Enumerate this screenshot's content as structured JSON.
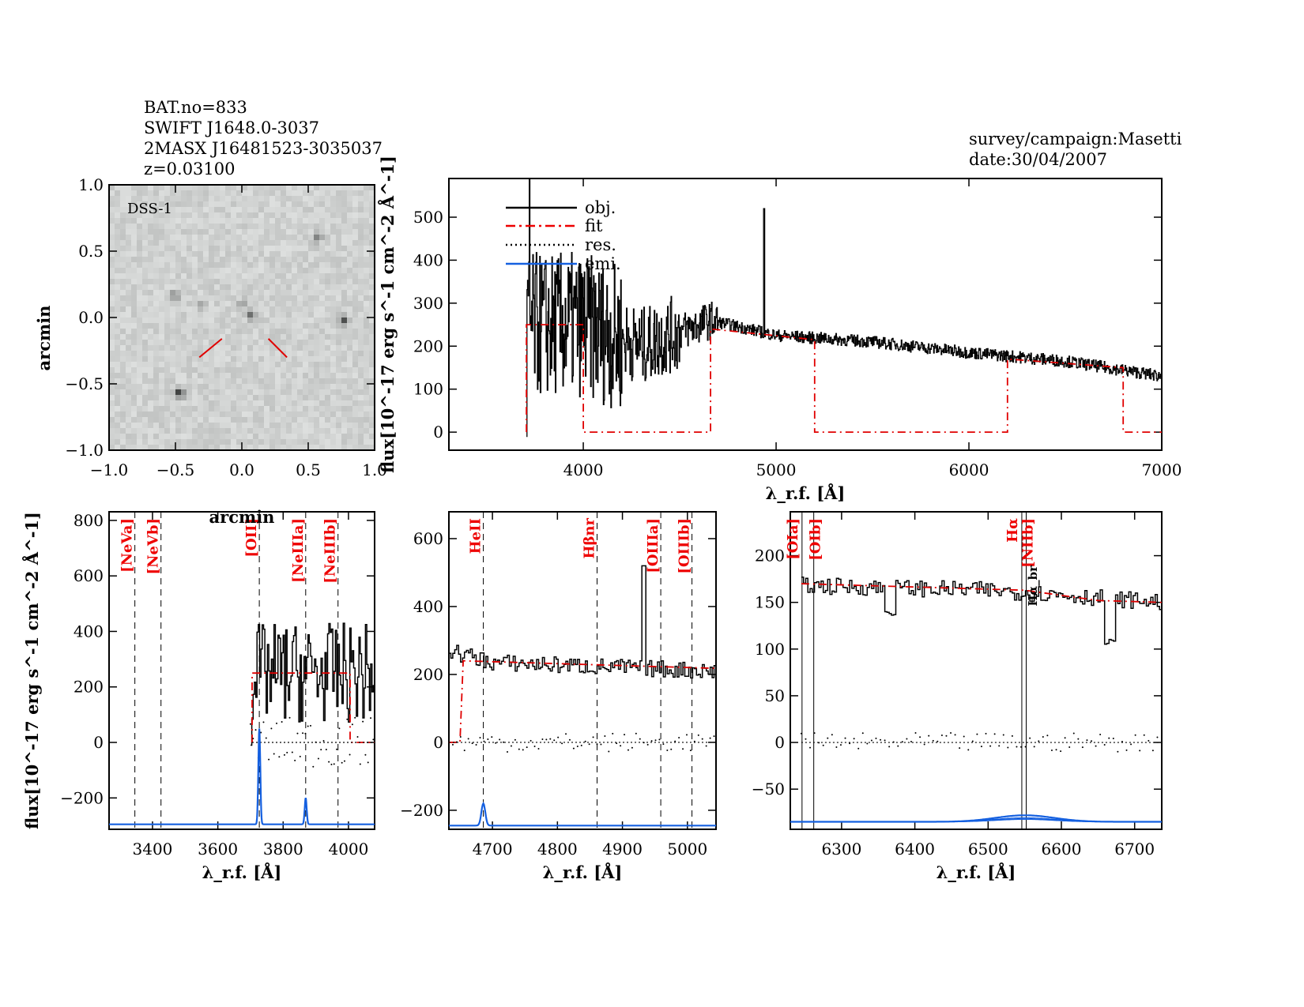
{
  "header": {
    "lines": [
      "BAT.no=833",
      "SWIFT J1648.0-3037",
      "2MASX J16481523-3035037",
      "z=0.03100"
    ],
    "survey": "survey/campaign:Masetti",
    "date": "date:30/04/2007"
  },
  "colors": {
    "obj": "#000000",
    "fit": "#e00000",
    "res": "#000000",
    "emi": "#1560e0"
  },
  "chart_data": [
    {
      "type": "image",
      "title": "DSS-1",
      "xlabel": "arcmin",
      "ylabel": "arcmin",
      "xlim": [
        -1,
        1
      ],
      "ylim": [
        -1,
        1
      ],
      "xticks": [
        "−1.0",
        "−0.5",
        "0.0",
        "0.5",
        "1.0"
      ],
      "yticks": [
        "−1.0",
        "−0.5",
        "0.0",
        "0.5",
        "1.0"
      ],
      "sources": [
        {
          "x": -0.47,
          "y": -0.57,
          "strength": 1
        },
        {
          "x": 0.77,
          "y": -0.02,
          "strength": 0.7
        },
        {
          "x": 0.07,
          "y": 0.01,
          "strength": 0.6
        },
        {
          "x": -0.5,
          "y": 0.17,
          "strength": 0.4
        },
        {
          "x": 0.57,
          "y": 0.6,
          "strength": 0.45
        },
        {
          "x": -0.3,
          "y": 0.1,
          "strength": 0.3
        },
        {
          "x": 0.0,
          "y": 0.1,
          "strength": 0.35
        }
      ],
      "marker_color": "#e00000"
    },
    {
      "type": "line",
      "xlabel": "λ_r.f. [Å]",
      "ylabel": "flux[10^-17 erg s^-1 cm^-2 Å^-1]",
      "xlim": [
        3303,
        7000
      ],
      "ylim": [
        -42,
        590
      ],
      "xticks": [
        4000,
        5000,
        6000,
        7000
      ],
      "yticks": [
        0,
        100,
        200,
        300,
        400,
        500
      ],
      "legend": [
        "obj.",
        "fit",
        "res.",
        "emi."
      ],
      "legend_position": "top-left",
      "obj_continuum": [
        [
          3700,
          250
        ],
        [
          4000,
          250
        ],
        [
          4300,
          200
        ],
        [
          4660,
          260
        ],
        [
          5000,
          225
        ],
        [
          5500,
          210
        ],
        [
          6000,
          185
        ],
        [
          6500,
          165
        ],
        [
          7000,
          130
        ]
      ],
      "obj_spikes": [
        [
          3720,
          590
        ],
        [
          4937,
          520
        ]
      ],
      "fit": [
        [
          3705,
          0
        ],
        [
          3705,
          250
        ],
        [
          4000,
          250
        ],
        [
          4000,
          0
        ],
        [
          4660,
          0
        ],
        [
          4660,
          240
        ],
        [
          5200,
          215
        ],
        [
          5200,
          0
        ],
        [
          6200,
          0
        ],
        [
          6200,
          170
        ],
        [
          6800,
          150
        ],
        [
          6800,
          0
        ],
        [
          7000,
          0
        ]
      ]
    },
    {
      "type": "line",
      "xlabel": "λ_r.f. [Å]",
      "ylabel": "flux[10^-17 erg s^-1 cm^-2 Å^-1]",
      "xlim": [
        3267,
        4080
      ],
      "ylim": [
        -313,
        831
      ],
      "xticks": [
        3400,
        3600,
        3800,
        4000
      ],
      "yticks": [
        -200,
        0,
        200,
        400,
        600,
        800
      ],
      "lines": [
        {
          "name": "[NeVa]",
          "x": 3346
        },
        {
          "name": "[NeVb]",
          "x": 3426
        },
        {
          "name": "[OII]",
          "x": 3727
        },
        {
          "name": "[NeIIIa]",
          "x": 3869
        },
        {
          "name": "[NeIIIb]",
          "x": 3968
        }
      ],
      "obj_range": [
        3700,
        4080
      ],
      "obj_level": 250,
      "fit": [
        [
          3705,
          0
        ],
        [
          3705,
          250
        ],
        [
          4005,
          250
        ],
        [
          4005,
          0
        ],
        [
          4080,
          0
        ]
      ],
      "emi_baseline": -295,
      "emi_peaks": [
        [
          3727,
          50
        ],
        [
          3869,
          -200
        ]
      ]
    },
    {
      "type": "line",
      "xlabel": "λ_r.f. [Å]",
      "xlim": [
        4633,
        5044
      ],
      "ylim": [
        -256,
        679
      ],
      "xticks": [
        4700,
        4800,
        4900,
        5000
      ],
      "yticks": [
        -200,
        0,
        200,
        400,
        600
      ],
      "lines": [
        {
          "name": "HeII",
          "x": 4686
        },
        {
          "name": "Hβ_nr",
          "x": 4861
        },
        {
          "name": "[OIIIa]",
          "x": 4959
        },
        {
          "name": "[OIIIb]",
          "x": 5007
        }
      ],
      "obj_continuum": [
        [
          4633,
          270
        ],
        [
          4700,
          235
        ],
        [
          5044,
          210
        ]
      ],
      "obj_spikes": [
        [
          4931,
          520
        ]
      ],
      "fit": [
        [
          4633,
          0
        ],
        [
          4650,
          0
        ],
        [
          4655,
          240
        ],
        [
          5044,
          218
        ]
      ],
      "emi_baseline": -245,
      "emi_peaks": [
        [
          4686,
          -180
        ]
      ]
    },
    {
      "type": "line",
      "xlabel": "λ_r.f. [Å]",
      "xlim": [
        6230,
        6737
      ],
      "ylim": [
        -93,
        247
      ],
      "xticks": [
        6300,
        6400,
        6500,
        6600,
        6700
      ],
      "yticks": [
        -50,
        0,
        50,
        100,
        150,
        200
      ],
      "lines": [
        {
          "name": "[OIa]",
          "x": 6246
        },
        {
          "name": "[OIb]",
          "x": 6262
        },
        {
          "name": "Hα",
          "x": 6546
        },
        {
          "name": "[NIIb]",
          "x": 6552
        }
      ],
      "broad_label": "Hα_br",
      "obj_continuum": [
        [
          6245,
          168
        ],
        [
          6500,
          163
        ],
        [
          6600,
          158
        ],
        [
          6737,
          150
        ]
      ],
      "obj_dips": [
        [
          6365,
          135
        ],
        [
          6665,
          110
        ]
      ],
      "fit": [
        [
          6245,
          170
        ],
        [
          6550,
          163
        ],
        [
          6650,
          152
        ],
        [
          6737,
          150
        ]
      ],
      "emi_baseline": -85,
      "emi_peaks": [
        [
          6550,
          -78
        ]
      ]
    }
  ]
}
